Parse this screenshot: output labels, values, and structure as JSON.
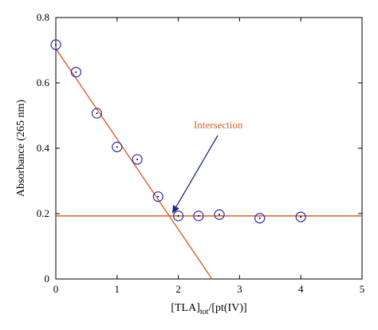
{
  "chart_data": {
    "type": "scatter",
    "xlabel": {
      "main": "[TLA]",
      "sub": "tot",
      "rest": "/[pt(IV)]"
    },
    "ylabel": "Absorbance (265 nm)",
    "xlim": [
      0,
      5
    ],
    "ylim": [
      0,
      0.8
    ],
    "x_ticks": [
      0,
      1,
      2,
      3,
      4,
      5
    ],
    "y_ticks": [
      0,
      0.2,
      0.4,
      0.6,
      0.8
    ],
    "x_tick_labels": [
      "0",
      "1",
      "2",
      "3",
      "4",
      "5"
    ],
    "y_tick_labels": [
      "0",
      "0.2",
      "0.4",
      "0.6",
      "0.8"
    ],
    "grid": false,
    "series": [
      {
        "marker": "open-circle-with-dot",
        "points": [
          {
            "x": 0.0,
            "y": 0.717
          },
          {
            "x": 0.33,
            "y": 0.633
          },
          {
            "x": 0.67,
            "y": 0.507
          },
          {
            "x": 1.0,
            "y": 0.404
          },
          {
            "x": 1.33,
            "y": 0.366
          },
          {
            "x": 1.67,
            "y": 0.252
          },
          {
            "x": 2.0,
            "y": 0.193
          },
          {
            "x": 2.33,
            "y": 0.193
          },
          {
            "x": 2.67,
            "y": 0.197
          },
          {
            "x": 3.33,
            "y": 0.186
          },
          {
            "x": 4.0,
            "y": 0.19
          }
        ]
      }
    ],
    "fit_lines": [
      {
        "from": [
          0,
          0.705
        ],
        "to": [
          2.55,
          0.0
        ]
      },
      {
        "from": [
          0,
          0.193
        ],
        "to": [
          5,
          0.193
        ]
      }
    ],
    "annotation": {
      "text": "Intersection",
      "arrow_to": [
        1.9,
        0.2
      ]
    },
    "colors": {
      "fit_line": "#d9602a",
      "marker": "#2a2ab0",
      "annotation_text": "#d9602a",
      "arrow": "#1e2a78"
    }
  }
}
